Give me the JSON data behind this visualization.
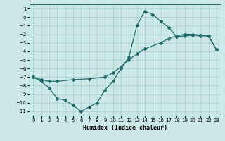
{
  "xlabel": "Humidex (Indice chaleur)",
  "background_color": "#cce8e8",
  "grid_color": "#aacccc",
  "line_color": "#1a6b6b",
  "curve1_x": [
    0,
    1,
    2,
    3,
    4,
    5,
    6,
    7,
    8,
    9,
    10,
    11,
    12,
    13,
    14,
    15,
    16,
    17,
    18,
    19,
    20,
    21,
    22,
    23
  ],
  "curve1_y": [
    -7.0,
    -7.5,
    -8.3,
    -9.5,
    -9.7,
    -10.3,
    -11.0,
    -10.5,
    -10.0,
    -8.5,
    -7.5,
    -6.0,
    -4.7,
    -1.0,
    0.7,
    0.3,
    -0.5,
    -1.2,
    -2.3,
    -2.2,
    -2.1,
    -2.2,
    -2.2,
    -3.8
  ],
  "curve2_x": [
    0,
    1,
    2,
    3,
    5,
    7,
    9,
    10,
    11,
    12,
    13,
    14,
    16,
    17,
    18,
    19,
    20,
    21,
    22,
    23
  ],
  "curve2_y": [
    -7.0,
    -7.3,
    -7.5,
    -7.5,
    -7.3,
    -7.2,
    -7.0,
    -6.5,
    -5.8,
    -5.0,
    -4.3,
    -3.7,
    -3.0,
    -2.5,
    -2.2,
    -2.0,
    -2.0,
    -2.1,
    -2.2,
    -3.8
  ],
  "xlim": [
    -0.5,
    23.5
  ],
  "ylim": [
    -11.5,
    1.5
  ],
  "xticks": [
    0,
    1,
    2,
    3,
    4,
    5,
    6,
    7,
    8,
    9,
    10,
    11,
    12,
    13,
    14,
    15,
    16,
    17,
    18,
    19,
    20,
    21,
    22,
    23
  ],
  "yticks": [
    1,
    0,
    -1,
    -2,
    -3,
    -4,
    -5,
    -6,
    -7,
    -8,
    -9,
    -10,
    -11
  ],
  "marker": "D",
  "markersize": 2,
  "linewidth": 0.9,
  "tick_fontsize": 5,
  "xlabel_fontsize": 6
}
